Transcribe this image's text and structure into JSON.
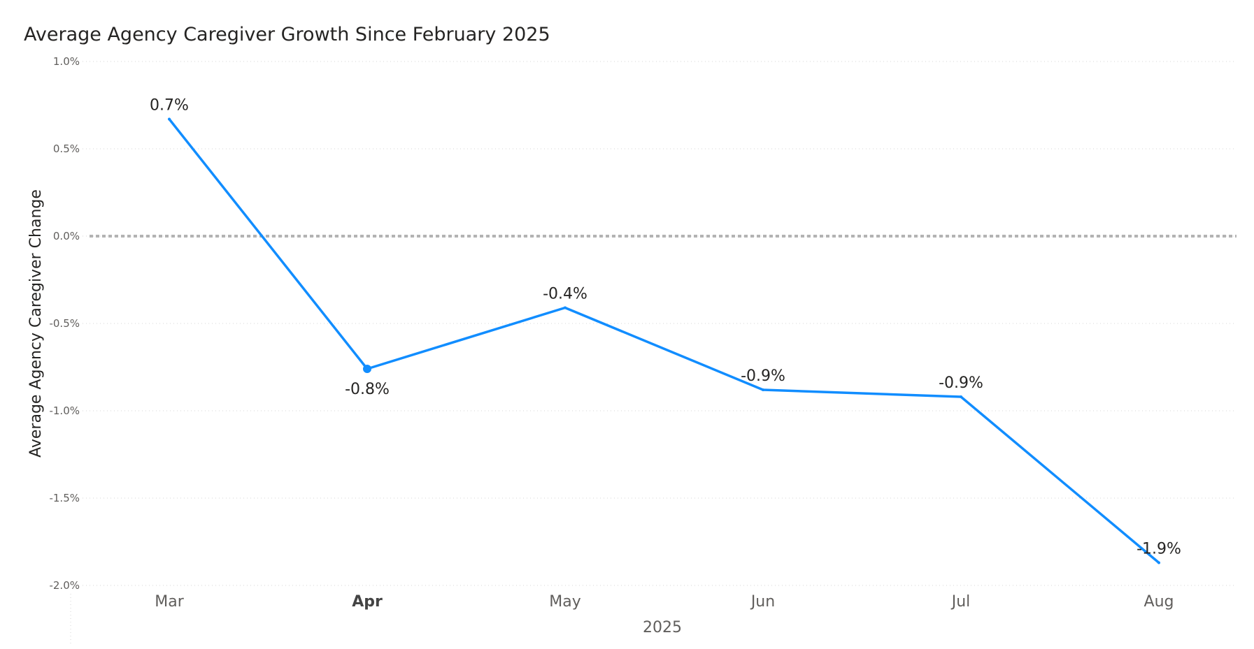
{
  "chart_data": {
    "type": "line",
    "title": "Average Agency Caregiver Growth Since February 2025",
    "xlabel": "2025",
    "ylabel": "Average Agency Caregiver Change",
    "categories": [
      "Mar",
      "Apr",
      "May",
      "Jun",
      "Jul",
      "Aug"
    ],
    "highlighted_category": "Apr",
    "series": [
      {
        "values": [
          0.67,
          -0.76,
          -0.41,
          -0.88,
          -0.92,
          -1.87
        ],
        "labels": [
          "0.7%",
          "-0.8%",
          "-0.4%",
          "-0.9%",
          "-0.9%",
          "-1.9%"
        ],
        "color": "#118DFF"
      }
    ],
    "ylim": [
      -2.0,
      1.0
    ],
    "yticks": [
      1.0,
      0.5,
      0.0,
      -0.5,
      -1.0,
      -1.5,
      -2.0
    ],
    "ytick_labels": [
      "1.0%",
      "0.5%",
      "0.0%",
      "-0.5%",
      "-1.0%",
      "-1.5%",
      "-2.0%"
    ],
    "reference_line": {
      "value": 0.0,
      "style": "dotted",
      "color": "#B3B3B3"
    },
    "grid": true,
    "legend": "none"
  }
}
